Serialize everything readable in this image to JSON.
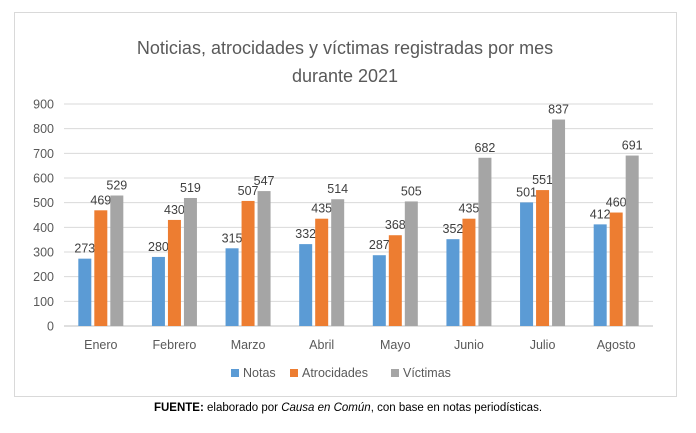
{
  "chart_data": {
    "type": "bar",
    "title": "Noticias, atrocidades y víctimas registradas por mes durante 2021",
    "title_lines": [
      "Noticias, atrocidades y víctimas registradas por mes",
      "durante 2021"
    ],
    "categories": [
      "Enero",
      "Febrero",
      "Marzo",
      "Abril",
      "Mayo",
      "Junio",
      "Julio",
      "Agosto"
    ],
    "series": [
      {
        "name": "Notas",
        "color": "#5b9bd5",
        "values": [
          273,
          280,
          315,
          332,
          287,
          352,
          501,
          412
        ]
      },
      {
        "name": "Atrocidades",
        "color": "#ed7d31",
        "values": [
          469,
          430,
          507,
          435,
          368,
          435,
          551,
          460
        ]
      },
      {
        "name": "Víctimas",
        "color": "#a5a5a5",
        "values": [
          529,
          519,
          547,
          514,
          505,
          682,
          837,
          691
        ]
      }
    ],
    "ylim": [
      0,
      900
    ],
    "yticks": [
      0,
      100,
      200,
      300,
      400,
      500,
      600,
      700,
      800,
      900
    ],
    "xlabel": "",
    "ylabel": "",
    "grid": true,
    "legend": "bottom",
    "data_labels": true
  },
  "footnote": {
    "label": "FUENTE:",
    "pre": " elaborado por ",
    "italic": "Causa en Común",
    "post": ", con base en notas periodísticas."
  }
}
